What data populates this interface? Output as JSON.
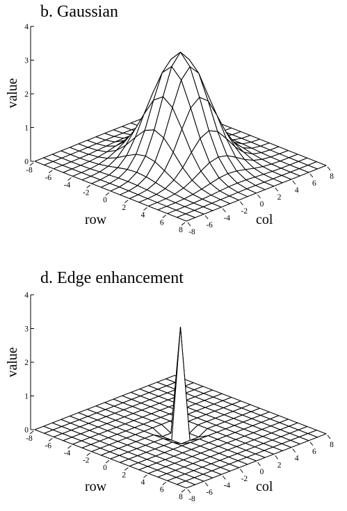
{
  "chart_data": [
    {
      "type": "surface3d",
      "panel": "b",
      "title": "b.  Gaussian",
      "zlabel": "value",
      "xlabel": "row",
      "ylabel": "col",
      "zlim": [
        0,
        4
      ],
      "zticks": [
        "0",
        "1",
        "2",
        "3",
        "4"
      ],
      "row_ticks": [
        "-8",
        "-6",
        "-4",
        "-2",
        "0",
        "2",
        "4",
        "6",
        "8"
      ],
      "col_ticks": [
        "-8",
        "-6",
        "-4",
        "-2",
        "0",
        "2",
        "4",
        "6",
        "8"
      ],
      "grid_range": [
        -8,
        8
      ],
      "kernel": "gaussian",
      "peak_value": 3.3,
      "sigma": 2.2
    },
    {
      "type": "surface3d",
      "panel": "d",
      "title": "d.  Edge enhancement",
      "zlabel": "value",
      "xlabel": "row",
      "ylabel": "col",
      "zlim": [
        0,
        4
      ],
      "zticks": [
        "0",
        "1",
        "2",
        "3",
        "4"
      ],
      "row_ticks": [
        "-8",
        "-6",
        "-4",
        "-2",
        "0",
        "2",
        "4",
        "6",
        "8"
      ],
      "col_ticks": [
        "-8",
        "-6",
        "-4",
        "-2",
        "0",
        "2",
        "4",
        "6",
        "8"
      ],
      "grid_range": [
        -8,
        8
      ],
      "kernel": "edge-enhancement",
      "peak_value": 3.1,
      "neighbor_value": -0.15
    }
  ]
}
